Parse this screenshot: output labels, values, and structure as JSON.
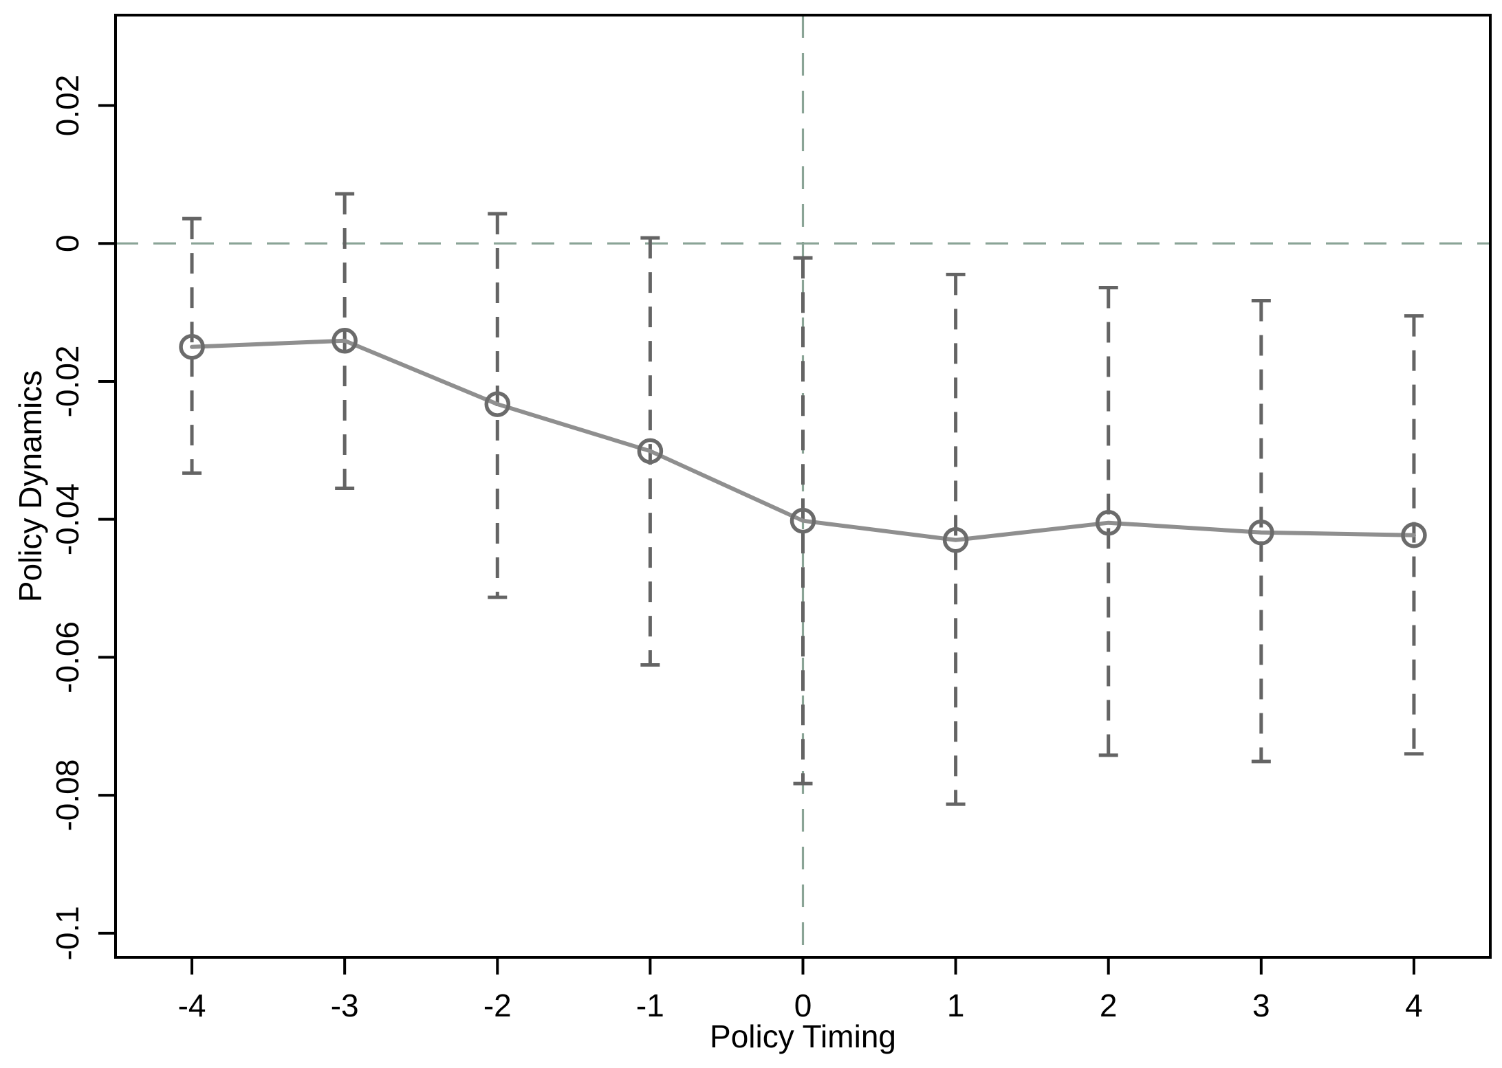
{
  "chart_data": {
    "type": "line",
    "title": "",
    "xlabel": "Policy Timing",
    "ylabel": "Policy Dynamics",
    "x": [
      -4,
      -3,
      -2,
      -1,
      0,
      1,
      2,
      3,
      4
    ],
    "series": [
      {
        "name": "estimate",
        "marker": "open-circle",
        "values": [
          -0.015,
          -0.0141,
          -0.0233,
          -0.0301,
          -0.0402,
          -0.043,
          -0.0405,
          -0.0419,
          -0.0423
        ]
      }
    ],
    "ci_high": [
      0.0036,
      0.0072,
      0.0043,
      0.0008,
      -0.0021,
      -0.0045,
      -0.0064,
      -0.0083,
      -0.0105
    ],
    "ci_low": [
      -0.0333,
      -0.0355,
      -0.0513,
      -0.0611,
      -0.0783,
      -0.0813,
      -0.0742,
      -0.0751,
      -0.074
    ],
    "xtick_values": [
      -4,
      -3,
      -2,
      -1,
      0,
      1,
      2,
      3,
      4
    ],
    "xtick_labels": [
      "-4",
      "-3",
      "-2",
      "-1",
      "0",
      "1",
      "2",
      "3",
      "4"
    ],
    "ytick_values": [
      0.02,
      0,
      -0.02,
      -0.04,
      -0.06,
      -0.08,
      -0.1
    ],
    "ytick_labels": [
      "0.02",
      "0",
      "-0.02",
      "-0.04",
      "-0.06",
      "-0.08",
      "-0.1"
    ],
    "xlim": [
      -4.5,
      4.5
    ],
    "ylim": [
      -0.1035,
      0.0331
    ],
    "ref_hline_y": 0,
    "ref_vline_x": 0,
    "grid": false,
    "legend": "none",
    "error_bar_style": "dashed-with-caps",
    "colors": {
      "axis": "#000000",
      "estimate_line": "#8f8f8f",
      "marker": "#6b6b6b",
      "error_bar": "#646464",
      "reference_line": "#8aa496",
      "background": "#ffffff"
    }
  }
}
